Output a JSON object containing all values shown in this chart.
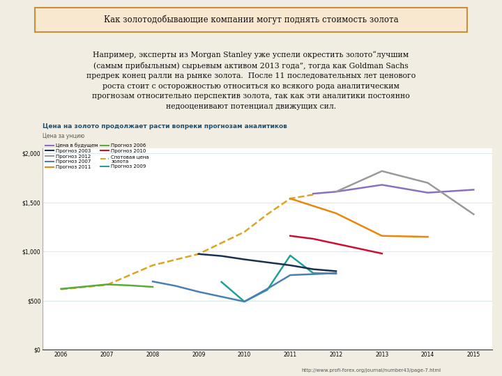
{
  "title_main": "Как золотодобывающие компании могут поднять стоимость золота",
  "body_text": "Например, эксперты из Morgan Stanley уже успели окрестить золото“лучшим\n(самым прибыльным) сырьевым активом 2013 года”, тогда как Goldman Sachs\nпредрек конец ралли на рынке золота.  После 11 последовательных лет ценового\nроста стоит с осторожностью относиться ко всякого рода аналитическим\nпрогнозам относительно перспектив золота, так как эти аналитики постоянно\nнедооценивают потенциал движущих сил.",
  "chart_title": "Цена на золото продолжает расти вопреки прогнозам аналитиков",
  "chart_subtitle": "Цена за унцию",
  "url": "http://www.profi-forex.org/journal/number43/page-7.html",
  "background_color": "#f2ede3",
  "chart_bg": "#ffffff",
  "x_ticks": [
    2006,
    2007,
    2008,
    2009,
    2010,
    2011,
    2012,
    2013,
    2014,
    2015
  ],
  "x_tick_labels": [
    "2006",
    "2007",
    "2008",
    "2009",
    "2010",
    "2011",
    "2012",
    "2013",
    "2014",
    "2015"
  ],
  "y_ticks": [
    0,
    500,
    1000,
    1500,
    2000
  ],
  "y_tick_labels": [
    "$0",
    "$500",
    "$1,000",
    "$1,500",
    "$2,000"
  ],
  "series": {
    "spot_price": {
      "label": "Спотовая цена\nзолота",
      "color": "#DAA520",
      "x": [
        2006,
        2007,
        2008,
        2009,
        2010,
        2010.5,
        2011,
        2011.5
      ],
      "y": [
        615,
        660,
        860,
        975,
        1200,
        1380,
        1540,
        1580
      ],
      "linestyle": "--",
      "linewidth": 1.8
    },
    "future_price": {
      "label": "Цена в будущем",
      "color": "#8B6FC0",
      "x": [
        2011.5,
        2012,
        2013,
        2014,
        2015
      ],
      "y": [
        1590,
        1610,
        1680,
        1600,
        1630
      ],
      "linestyle": "-",
      "linewidth": 1.8
    },
    "forecast_2003": {
      "label": "Прогноз 2003",
      "color": "#1a3050",
      "x": [
        2009,
        2009.5,
        2010,
        2010.5,
        2011,
        2011.5,
        2012
      ],
      "y": [
        975,
        955,
        920,
        890,
        860,
        820,
        800
      ],
      "linestyle": "-",
      "linewidth": 1.8
    },
    "forecast_2012": {
      "label": "Прогноз 2012",
      "color": "#999999",
      "x": [
        2012,
        2013,
        2014,
        2015
      ],
      "y": [
        1610,
        1820,
        1700,
        1380
      ],
      "linestyle": "-",
      "linewidth": 1.8
    },
    "forecast_2007": {
      "label": "Прогноз 2007",
      "color": "#4a7fb5",
      "x": [
        2008,
        2008.5,
        2009,
        2009.5,
        2010,
        2010.5,
        2011,
        2011.5,
        2012
      ],
      "y": [
        695,
        650,
        590,
        540,
        490,
        620,
        760,
        770,
        780
      ],
      "linestyle": "-",
      "linewidth": 1.8
    },
    "forecast_2011": {
      "label": "Прогноз 2011",
      "color": "#E8880A",
      "x": [
        2011,
        2012,
        2013,
        2014
      ],
      "y": [
        1540,
        1390,
        1160,
        1150
      ],
      "linestyle": "-",
      "linewidth": 1.8
    },
    "forecast_2006": {
      "label": "Прогноз 2006",
      "color": "#5aaa40",
      "x": [
        2006,
        2007,
        2007.5,
        2008
      ],
      "y": [
        620,
        665,
        655,
        640
      ],
      "linestyle": "-",
      "linewidth": 1.8
    },
    "forecast_2010": {
      "label": "Прогноз 2010",
      "color": "#CC1030",
      "x": [
        2011,
        2011.5,
        2012,
        2012.5,
        2013
      ],
      "y": [
        1160,
        1130,
        1080,
        1030,
        980
      ],
      "linestyle": "-",
      "linewidth": 1.8
    },
    "forecast_2009": {
      "label": "Прогноз 2009",
      "color": "#20A098",
      "x": [
        2009.5,
        2010,
        2010.5,
        2011,
        2011.5,
        2012
      ],
      "y": [
        690,
        490,
        610,
        960,
        780,
        775
      ],
      "linestyle": "-",
      "linewidth": 1.8
    }
  }
}
